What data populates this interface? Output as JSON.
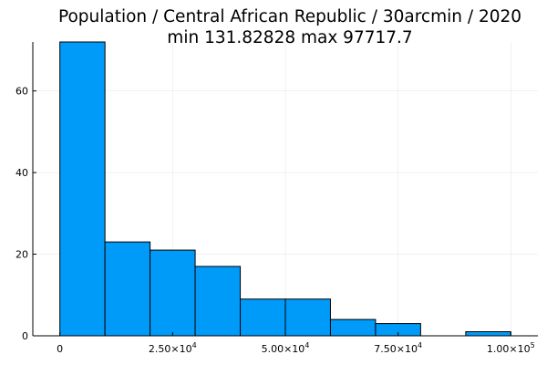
{
  "chart_data": {
    "type": "bar",
    "histogram": true,
    "title": "Population / Central African Republic / 30arcmin / 2020",
    "subtitle": "min 131.82828  max 97717.7",
    "xlabel": "",
    "ylabel": "",
    "bin_edges": [
      0,
      10000,
      20000,
      30000,
      40000,
      50000,
      60000,
      70000,
      80000,
      90000,
      100000
    ],
    "values": [
      72,
      23,
      21,
      17,
      9,
      9,
      4,
      3,
      0,
      1
    ],
    "xlim": [
      -6000,
      106000
    ],
    "ylim": [
      0,
      72
    ],
    "x_ticks": [
      {
        "value": 0,
        "label": "0",
        "exp": ""
      },
      {
        "value": 25000,
        "label": "2.50×10",
        "exp": "4"
      },
      {
        "value": 50000,
        "label": "5.00×10",
        "exp": "4"
      },
      {
        "value": 75000,
        "label": "7.50×10",
        "exp": "4"
      },
      {
        "value": 100000,
        "label": "1.00×10",
        "exp": "5"
      }
    ],
    "y_ticks": [
      {
        "value": 0,
        "label": "0"
      },
      {
        "value": 20,
        "label": "20"
      },
      {
        "value": 40,
        "label": "40"
      },
      {
        "value": 60,
        "label": "60"
      }
    ],
    "grid": true,
    "bar_color": "#009af9",
    "edge_color": "#000000"
  }
}
